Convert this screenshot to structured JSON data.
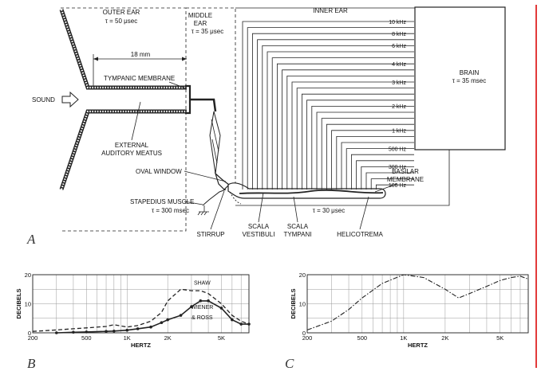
{
  "diagram": {
    "outer_ear": {
      "title": "OUTER EAR",
      "tau": "τ = 50 μsec"
    },
    "middle_ear": {
      "title_line1": "MIDDLE",
      "title_line2": "EAR",
      "tau": "τ = 35 μsec"
    },
    "inner_ear": {
      "title": "INNER EAR"
    },
    "brain": {
      "title": "BRAIN",
      "tau": "τ = 35 msec"
    },
    "dimension": "18 mm",
    "sound": "SOUND",
    "tympanic_membrane": "TYMPANIC MEMBRANE",
    "meatus_line1": "EXTERNAL",
    "meatus_line2": "AUDITORY MEATUS",
    "oval_window": "OVAL WINDOW",
    "stapedius_line1": "STAPEDIUS MUSCLE",
    "stapedius_tau": "τ = 300 msec",
    "stirrup": "STIRRUP",
    "scala_vestibuli_line1": "SCALA",
    "scala_vestibuli_line2": "VESTIBULI",
    "scala_tympani_line1": "SCALA",
    "scala_tympani_line2": "TYMPANI",
    "helicotrema": "HELICOTREMA",
    "basilar_line1": "BASILAR",
    "basilar_line2": "MEMBRANE",
    "cochlea_tau": "τ = 30 μsec",
    "freq_labels": [
      "10 kHz",
      "8 kHz",
      "6 kHz",
      "4 kHz",
      "3 kHz",
      "2 kHz",
      "1 kHz",
      "500 Hz",
      "300 Hz",
      "100 Hz"
    ],
    "panel_a": "A",
    "panel_b": "B",
    "panel_c": "C"
  },
  "chart_data": [
    {
      "type": "line",
      "panel": "B",
      "xlabel": "HERTZ",
      "ylabel": "DECIBELS",
      "x_scale": "log",
      "xlim": [
        200,
        8000
      ],
      "ylim": [
        0,
        20
      ],
      "x_ticks": [
        200,
        500,
        1000,
        2000,
        5000
      ],
      "x_tick_labels": [
        "200",
        "500",
        "1K",
        "2K",
        "5K"
      ],
      "y_ticks": [
        0,
        10,
        20
      ],
      "y_tick_labels": [
        "0",
        "10",
        "20"
      ],
      "grid": true,
      "series": [
        {
          "name": "SHAW",
          "style": "dashed",
          "x": [
            200,
            300,
            400,
            500,
            700,
            800,
            1000,
            1200,
            1500,
            1800,
            2000,
            2500,
            3000,
            3500,
            4000,
            5000,
            6000,
            7000,
            8000
          ],
          "y": [
            0.5,
            1.0,
            1.4,
            1.7,
            2.2,
            2.8,
            2.0,
            2.5,
            4.0,
            7.0,
            11.0,
            15.0,
            14.5,
            14.5,
            13.5,
            10.0,
            6.0,
            4.0,
            3.0
          ]
        },
        {
          "name": "WIENER & ROSS",
          "style": "solid-dots",
          "x": [
            300,
            400,
            500,
            700,
            800,
            1000,
            1200,
            1500,
            1800,
            2000,
            2500,
            3000,
            3500,
            4000,
            5000,
            6000,
            7000,
            8000
          ],
          "y": [
            0.0,
            0.2,
            0.3,
            0.5,
            0.6,
            0.9,
            1.4,
            2.0,
            3.5,
            4.5,
            6.0,
            9.0,
            11.0,
            11.0,
            8.5,
            4.5,
            3.0,
            3.0
          ]
        }
      ]
    },
    {
      "type": "line",
      "panel": "C",
      "xlabel": "HERTZ",
      "ylabel": "DECIBELS",
      "x_scale": "log",
      "xlim": [
        200,
        8000
      ],
      "ylim": [
        0,
        20
      ],
      "x_ticks": [
        200,
        500,
        1000,
        2000,
        5000
      ],
      "x_tick_labels": [
        "200",
        "500",
        "1K",
        "2K",
        "5K"
      ],
      "y_ticks": [
        0,
        10,
        20
      ],
      "y_tick_labels": [
        "0",
        "10",
        "20"
      ],
      "grid": true,
      "series": [
        {
          "style": "dash-dot",
          "x": [
            200,
            300,
            400,
            500,
            700,
            1000,
            1400,
            2000,
            2500,
            3000,
            4000,
            5000,
            6000,
            7000,
            8000
          ],
          "y": [
            1.0,
            4.0,
            8.0,
            12.0,
            17.0,
            20.0,
            19.0,
            15.0,
            12.0,
            13.5,
            16.0,
            18.0,
            19.0,
            19.5,
            18.5
          ]
        }
      ]
    }
  ]
}
